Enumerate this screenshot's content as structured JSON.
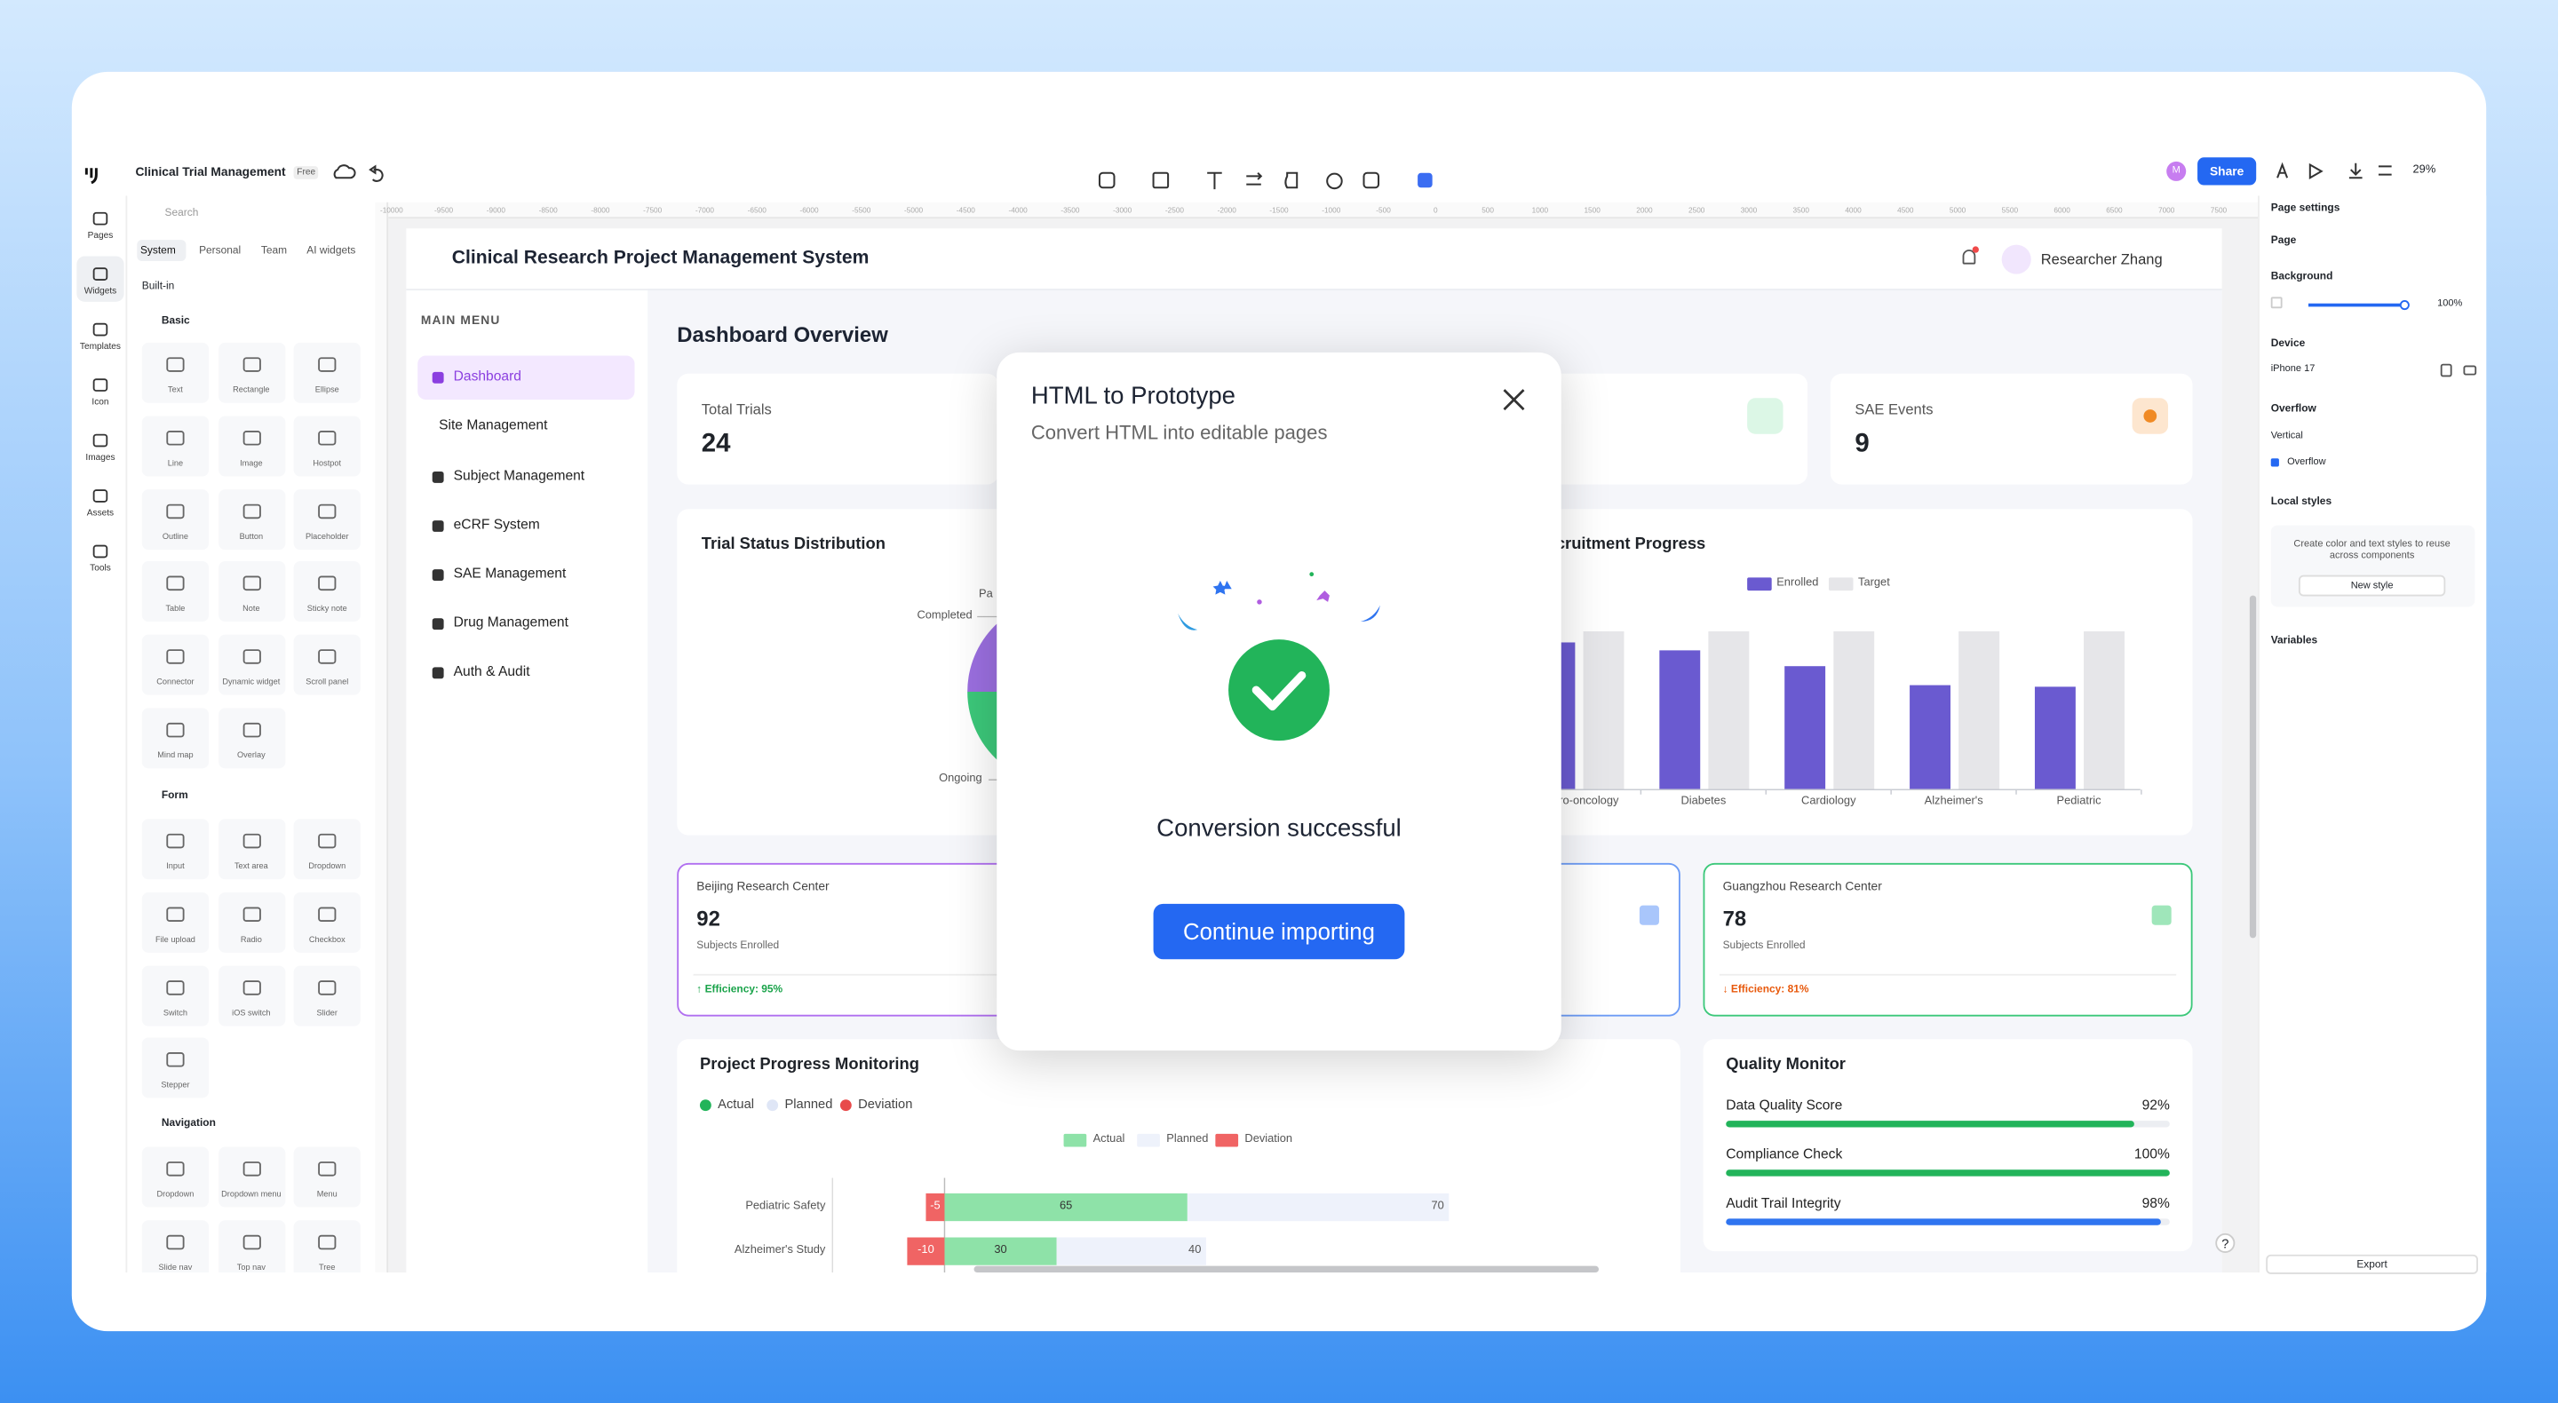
{
  "app_bar": {
    "file_name": "Clinical Trial Management",
    "badge": "Free",
    "avatar": "M",
    "share": "Share",
    "zoom": "29%"
  },
  "left_rail": [
    "Pages",
    "Widgets",
    "Templates",
    "Icon",
    "Images",
    "Assets",
    "Tools"
  ],
  "widget_panel": {
    "search": "Search",
    "tabs": [
      "System",
      "Personal",
      "Team",
      "AI widgets"
    ],
    "source": "Built-in",
    "sections": [
      {
        "title": "Basic",
        "items": [
          "Text",
          "Rectangle",
          "Ellipse",
          "Line",
          "Image",
          "Hostpot",
          "Outline",
          "Button",
          "Placeholder",
          "Table",
          "Note",
          "Sticky note",
          "Connector",
          "Dynamic widget",
          "Scroll panel",
          "Mind map",
          "Overlay"
        ]
      },
      {
        "title": "Form",
        "items": [
          "Input",
          "Text area",
          "Dropdown",
          "File upload",
          "Radio",
          "Checkbox",
          "Switch",
          "iOS switch",
          "Slider",
          "Stepper"
        ]
      },
      {
        "title": "Navigation",
        "items": [
          "Dropdown",
          "Dropdown menu",
          "Menu",
          "Slide nav",
          "Top nav",
          "Tree"
        ]
      }
    ]
  },
  "ruler_x": [
    -10000,
    -9500,
    -9000,
    -8500,
    -8000,
    -7500,
    -7000,
    -6500,
    -6000,
    -5500,
    -5000,
    -4500,
    -4000,
    -3500,
    -3000,
    -2500,
    -2000,
    -1500,
    -1000,
    -500,
    0,
    500,
    1000,
    1500,
    2000,
    2500,
    3000,
    3500,
    4000,
    4500,
    5000,
    5500,
    6000,
    6500,
    7000,
    7500
  ],
  "app": {
    "title": "Clinical Research Project Management System",
    "user": "Researcher Zhang",
    "menu_heading": "MAIN MENU",
    "menu": [
      "Dashboard",
      "Site Management",
      "Subject Management",
      "eCRF System",
      "SAE Management",
      "Drug Management",
      "Auth & Audit"
    ],
    "page_title": "Dashboard Overview",
    "stats": [
      {
        "label": "Total Trials",
        "value": "24"
      },
      {
        "label": "SAE Events",
        "value": "9"
      }
    ],
    "sites": [
      {
        "name": "Beijing Research Center",
        "value": "92",
        "caption": "Subjects Enrolled",
        "efficiency": "↑ Efficiency: 95%"
      },
      {
        "name": "Guangzhou Research Center",
        "value": "78",
        "caption": "Subjects Enrolled",
        "efficiency": "↓ Efficiency: 81%"
      }
    ],
    "help": "?"
  },
  "trial_status": {
    "type": "pie",
    "title": "Trial Status Distribution",
    "categories": [
      "Ongoing",
      "Completed",
      "Pa"
    ],
    "values": [
      14,
      6,
      4
    ],
    "colors": [
      "#3cc87a",
      "#9b6fe0",
      "#f5b84a"
    ]
  },
  "recruitment_progress": {
    "type": "bar",
    "title": "Recruitment Progress",
    "categories": [
      "Neuro-oncology",
      "Diabetes",
      "Cardiology",
      "Alzheimer's",
      "Pediatric"
    ],
    "series": [
      {
        "name": "Enrolled",
        "color": "#6a5ad0",
        "values": [
          93,
          88,
          78,
          66,
          65
        ]
      },
      {
        "name": "Target",
        "color": "#e6e6e9",
        "values": [
          100,
          100,
          100,
          100,
          100
        ]
      }
    ],
    "ylim": [
      0,
      100
    ]
  },
  "project_progress": {
    "type": "hbar-stacked",
    "title": "Project Progress Monitoring",
    "legend": [
      "Actual",
      "Planned",
      "Deviation"
    ],
    "categories": [
      "Pediatric Safety",
      "Alzheimer's Study"
    ],
    "series": [
      {
        "name": "Actual",
        "color": "#8ee2a8",
        "values": [
          65,
          30
        ]
      },
      {
        "name": "Planned",
        "color": "#eef2fb",
        "values": [
          70,
          40
        ]
      },
      {
        "name": "Deviation",
        "color": "#f06464",
        "values": [
          -5,
          -10
        ]
      }
    ],
    "xlim": [
      -30,
      180
    ]
  },
  "quality_monitor": {
    "type": "progress",
    "title": "Quality Monitor",
    "categories": [
      "Data Quality Score",
      "Compliance Check",
      "Audit Trail Integrity"
    ],
    "values": [
      92,
      100,
      98
    ],
    "value_labels": [
      "92%",
      "100%",
      "98%"
    ],
    "colors": [
      "#22b45a",
      "#22b45a",
      "#2f74f0"
    ],
    "xlim": [
      0,
      100
    ]
  },
  "modal": {
    "title": "HTML to Prototype",
    "subtitle": "Convert HTML into editable pages",
    "status": "Conversion successful",
    "button": "Continue importing"
  },
  "right_panel": {
    "title": "Page settings",
    "page": "Page",
    "background": "Background",
    "opacity": "100%",
    "device": "Device",
    "device_name": "iPhone 17",
    "overflow": "Overflow",
    "overflow_mode": "Vertical",
    "overflow_check": "Overflow",
    "local_styles": "Local styles",
    "local_styles_hint": "Create color and text styles to reuse across components",
    "new_style": "New style",
    "variables": "Variables",
    "export": "Export"
  }
}
